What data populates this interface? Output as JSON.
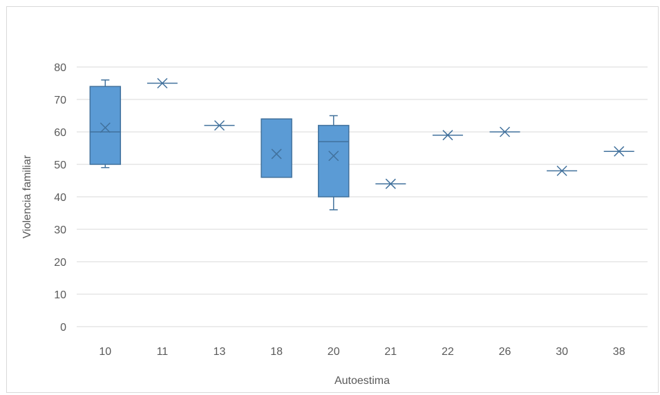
{
  "chart_data": {
    "type": "boxplot",
    "title": "",
    "xlabel": "Autoestima",
    "ylabel": "Violencia familiar",
    "ylim": [
      0,
      80
    ],
    "yticks": [
      0,
      10,
      20,
      30,
      40,
      50,
      60,
      70,
      80
    ],
    "grid": true,
    "legend": "none",
    "categories": [
      "10",
      "11",
      "13",
      "18",
      "20",
      "21",
      "22",
      "26",
      "30",
      "38"
    ],
    "boxes": [
      {
        "category": "10",
        "min": 49,
        "q1": 50,
        "median": 60,
        "q3": 74,
        "max": 76,
        "mean": 61.3
      },
      {
        "category": "11",
        "min": 75,
        "q1": 75,
        "median": 75,
        "q3": 75,
        "max": 75,
        "mean": 75
      },
      {
        "category": "13",
        "min": 62,
        "q1": 62,
        "median": 62,
        "q3": 62,
        "max": 62,
        "mean": 62
      },
      {
        "category": "18",
        "min": 46,
        "q1": 46,
        "median": 64,
        "q3": 64,
        "max": 64,
        "mean": 53.2
      },
      {
        "category": "20",
        "min": 36,
        "q1": 40,
        "median": 57,
        "q3": 62,
        "max": 65,
        "mean": 52.6
      },
      {
        "category": "21",
        "min": 44,
        "q1": 44,
        "median": 44,
        "q3": 44,
        "max": 44,
        "mean": 44
      },
      {
        "category": "22",
        "min": 59,
        "q1": 59,
        "median": 59,
        "q3": 59,
        "max": 59,
        "mean": 59
      },
      {
        "category": "26",
        "min": 60,
        "q1": 60,
        "median": 60,
        "q3": 60,
        "max": 60,
        "mean": 60
      },
      {
        "category": "30",
        "min": 48,
        "q1": 48,
        "median": 48,
        "q3": 48,
        "max": 48,
        "mean": 48
      },
      {
        "category": "38",
        "min": 54,
        "q1": 54,
        "median": 54,
        "q3": 54,
        "max": 54,
        "mean": 54
      }
    ],
    "colors": {
      "box_fill": "#5b9bd5",
      "box_stroke": "#41719c",
      "whisker": "#41719c",
      "mean_marker": "#41719c",
      "grid": "#d9d9d9",
      "text": "#595959"
    }
  }
}
